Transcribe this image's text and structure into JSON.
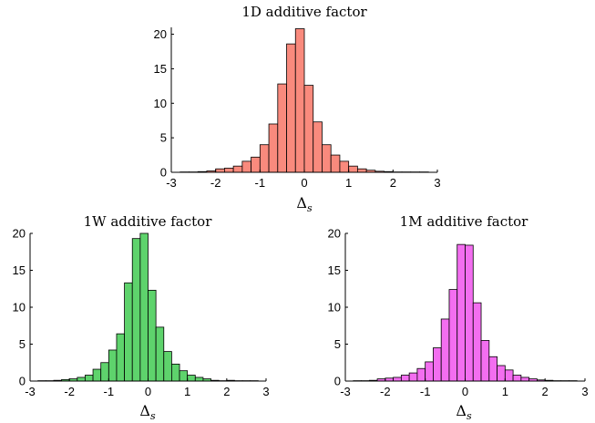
{
  "chart_data": [
    {
      "type": "bar",
      "title": "1D additive factor",
      "xlabel": "Δ",
      "xlabel_sub": "s",
      "color": "#F98A7D",
      "xlim": [
        -3,
        3
      ],
      "ylim": [
        0,
        21
      ],
      "xticks": [
        "-3",
        "-2",
        "-1",
        "0",
        "1",
        "2",
        "3"
      ],
      "yticks": [
        "0",
        "5",
        "10",
        "15",
        "20"
      ],
      "bin_width": 0.2,
      "bin_start": -2.8,
      "values": [
        0.05,
        0.05,
        0.1,
        0.2,
        0.5,
        0.6,
        0.9,
        1.6,
        2.2,
        4.0,
        7.0,
        12.8,
        18.6,
        20.8,
        12.6,
        7.3,
        4.0,
        2.5,
        1.6,
        0.9,
        0.5,
        0.3,
        0.15,
        0.1,
        0.05,
        0.05,
        0.05,
        0.05
      ]
    },
    {
      "type": "bar",
      "title": "1W additive factor",
      "xlabel": "Δ",
      "xlabel_sub": "s",
      "color": "#5ED36C",
      "xlim": [
        -3,
        3
      ],
      "ylim": [
        0,
        20
      ],
      "xticks": [
        "-3",
        "-2",
        "-1",
        "0",
        "1",
        "2",
        "3"
      ],
      "yticks": [
        "0",
        "5",
        "10",
        "15",
        "20"
      ],
      "bin_width": 0.2,
      "bin_start": -2.8,
      "values": [
        0.05,
        0.05,
        0.1,
        0.2,
        0.3,
        0.5,
        0.8,
        1.6,
        2.5,
        4.2,
        6.4,
        13.3,
        19.3,
        20.0,
        12.3,
        7.3,
        4.0,
        2.3,
        1.4,
        0.8,
        0.5,
        0.3,
        0.1,
        0.05,
        0.1,
        0.05,
        0.05,
        0.05
      ]
    },
    {
      "type": "bar",
      "title": "1M additive factor",
      "xlabel": "Δ",
      "xlabel_sub": "s",
      "color": "#F36EF0",
      "xlim": [
        -3,
        3
      ],
      "ylim": [
        0,
        20
      ],
      "xticks": [
        "-3",
        "-2",
        "-1",
        "0",
        "1",
        "2",
        "3"
      ],
      "yticks": [
        "0",
        "5",
        "10",
        "15",
        "20"
      ],
      "bin_width": 0.2,
      "bin_start": -2.8,
      "values": [
        0.05,
        0.05,
        0.1,
        0.3,
        0.4,
        0.5,
        0.8,
        1.1,
        1.7,
        2.6,
        4.5,
        8.4,
        12.4,
        18.5,
        18.4,
        10.6,
        5.5,
        3.3,
        2.1,
        1.5,
        0.8,
        0.5,
        0.3,
        0.15,
        0.1,
        0.05,
        0.05,
        0.05
      ]
    }
  ]
}
